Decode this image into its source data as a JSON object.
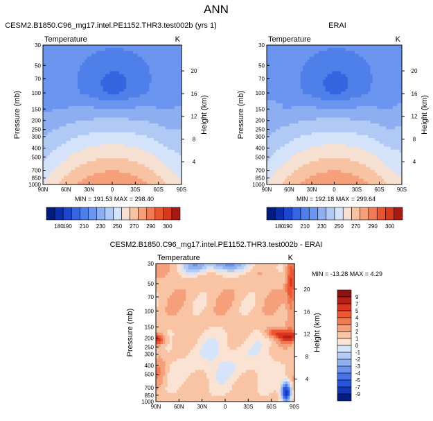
{
  "figure_title": "ANN",
  "chart_data": [
    {
      "type": "heatmap",
      "title": "CESM2.B1850.C96_mg17.intel.PE1152.THR3.test002b (yrs 1)",
      "subtitle_left": "Temperature",
      "subtitle_right": "K",
      "ylabel": "Pressure (mb)",
      "ylabel_right": "Height (km)",
      "x_ticks": [
        "90N",
        "60N",
        "30N",
        "0",
        "30S",
        "60S",
        "90S"
      ],
      "y_ticks": [
        "30",
        "50",
        "70",
        "100",
        "150",
        "200",
        "250",
        "300",
        "400",
        "500",
        "700",
        "850",
        "1000"
      ],
      "height_ticks": [
        "20",
        "16",
        "12",
        "8",
        "4"
      ],
      "stats": "MIN = 191.53   MAX = 298.40",
      "colorbar": {
        "labels": [
          "180",
          "190",
          "210",
          "230",
          "250",
          "270",
          "290",
          "300"
        ],
        "levels": [
          180,
          185,
          190,
          200,
          210,
          220,
          230,
          240,
          250,
          260,
          270,
          280,
          290,
          295,
          300
        ],
        "colors": [
          "#001c7f",
          "#0a2fa8",
          "#1c46cf",
          "#3565e0",
          "#4f7fe8",
          "#6b95ee",
          "#8daff2",
          "#b0c9f5",
          "#d4e3fa",
          "#f6e0d2",
          "#f8c3a3",
          "#f6a07b",
          "#f27b55",
          "#ea5530",
          "#d9381c",
          "#a81912"
        ]
      },
      "min": 191.53,
      "max": 298.4,
      "field": "model"
    },
    {
      "type": "heatmap",
      "title": "ERAI",
      "subtitle_left": "Temperature",
      "subtitle_right": "K",
      "ylabel": "Pressure (mb)",
      "ylabel_right": "Height (km)",
      "x_ticks": [
        "90N",
        "60N",
        "30N",
        "0",
        "30S",
        "60S",
        "90S"
      ],
      "y_ticks": [
        "30",
        "50",
        "70",
        "100",
        "150",
        "200",
        "250",
        "300",
        "400",
        "500",
        "700",
        "850",
        "1000"
      ],
      "height_ticks": [
        "20",
        "16",
        "12",
        "8",
        "4"
      ],
      "stats": "MIN = 192.18   MAX = 299.64",
      "colorbar": {
        "labels": [
          "180",
          "190",
          "210",
          "230",
          "250",
          "270",
          "290",
          "300"
        ],
        "levels": [
          180,
          185,
          190,
          200,
          210,
          220,
          230,
          240,
          250,
          260,
          270,
          280,
          290,
          295,
          300
        ],
        "colors": [
          "#001c7f",
          "#0a2fa8",
          "#1c46cf",
          "#3565e0",
          "#4f7fe8",
          "#6b95ee",
          "#8daff2",
          "#b0c9f5",
          "#d4e3fa",
          "#f6e0d2",
          "#f8c3a3",
          "#f6a07b",
          "#f27b55",
          "#ea5530",
          "#d9381c",
          "#a81912"
        ]
      },
      "min": 192.18,
      "max": 299.64,
      "field": "obs"
    },
    {
      "type": "heatmap",
      "title": "CESM2.B1850.C96_mg17.intel.PE1152.THR3.test002b - ERAI",
      "subtitle_left": "Temperature",
      "subtitle_right": "K",
      "ylabel": "Pressure (mb)",
      "ylabel_right": "Height (km)",
      "x_ticks": [
        "90N",
        "60N",
        "30N",
        "0",
        "30S",
        "60S",
        "90S"
      ],
      "y_ticks": [
        "30",
        "50",
        "70",
        "100",
        "150",
        "200",
        "250",
        "300",
        "400",
        "500",
        "700",
        "850",
        "1000"
      ],
      "height_ticks": [
        "20",
        "16",
        "12",
        "8",
        "4"
      ],
      "stats": "MIN = -13.28  MAX =   4.29",
      "colorbar": {
        "labels": [
          "9",
          "7",
          "5",
          "4",
          "3",
          "2",
          "1",
          "0",
          "-1",
          "-2",
          "-3",
          "-4",
          "-5",
          "-7",
          "-9"
        ],
        "colors": [
          "#8a1510",
          "#b72017",
          "#d93520",
          "#ef5632",
          "#f27a52",
          "#f6a07b",
          "#f8c4a4",
          "#fbe3d4",
          "#d6e4fa",
          "#b3cbf5",
          "#8fb0f1",
          "#6b93ec",
          "#4775e6",
          "#2756dc",
          "#1538b8",
          "#031c86"
        ]
      },
      "min": -13.28,
      "max": 4.29,
      "field": "diff"
    }
  ]
}
